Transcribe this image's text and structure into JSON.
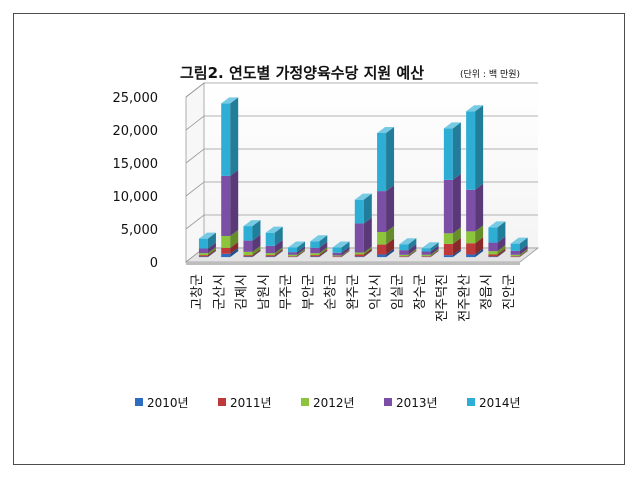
{
  "chart_data": {
    "type": "bar",
    "stacked": true,
    "title": "그림2. 연도별 가정양육수당 지원 예산",
    "title_unit": "(단위 : 백 만원)",
    "categories": [
      "고창군",
      "군산시",
      "김제시",
      "남원시",
      "무주군",
      "부안군",
      "순창군",
      "완주군",
      "익산시",
      "임실군",
      "장수군",
      "전주덕진",
      "전주완산",
      "정읍시",
      "진안군"
    ],
    "series": [
      {
        "name": "2010년",
        "color": "#2e6cc0",
        "values": [
          100,
          500,
          100,
          100,
          50,
          100,
          50,
          100,
          400,
          50,
          50,
          300,
          400,
          100,
          50
        ]
      },
      {
        "name": "2011년",
        "color": "#c0393a",
        "values": [
          200,
          900,
          200,
          200,
          100,
          200,
          100,
          300,
          1500,
          100,
          100,
          1700,
          1700,
          300,
          100
        ]
      },
      {
        "name": "2012년",
        "color": "#8cc43b",
        "values": [
          300,
          1800,
          500,
          300,
          200,
          300,
          100,
          300,
          1900,
          200,
          200,
          1600,
          1800,
          500,
          200
        ]
      },
      {
        "name": "2013년",
        "color": "#7b4fa5",
        "values": [
          700,
          9100,
          1700,
          1100,
          400,
          800,
          400,
          4400,
          6200,
          700,
          500,
          8100,
          6300,
          1300,
          600
        ]
      },
      {
        "name": "2014년",
        "color": "#2eaed4",
        "values": [
          1500,
          11000,
          2200,
          2000,
          700,
          1000,
          800,
          3600,
          8800,
          900,
          500,
          7800,
          11900,
          2300,
          1100
        ]
      }
    ],
    "yticks": [
      "0",
      "5,000",
      "10,000",
      "15,000",
      "20,000",
      "25,000"
    ],
    "ylim": [
      0,
      25000
    ],
    "grid": true,
    "legend_position": "bottom"
  }
}
